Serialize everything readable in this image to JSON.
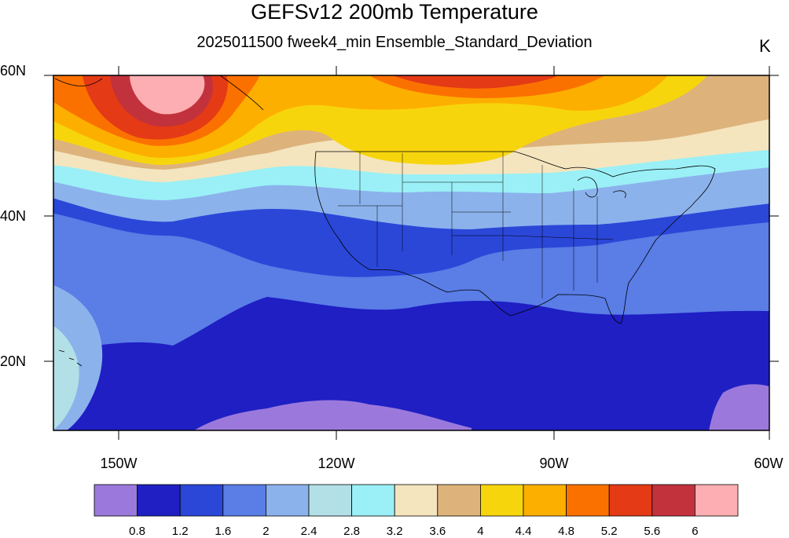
{
  "title": "GEFSv12 200mb Temperature",
  "subtitle": "2025011500 fweek4_min Ensemble_Standard_Deviation",
  "units": "K",
  "latitude_labels": [
    "60N",
    "40N",
    "20N"
  ],
  "longitude_labels": [
    "150W",
    "120W",
    "90W",
    "60W"
  ],
  "colorbar": {
    "labels": [
      "0.8",
      "1.2",
      "1.6",
      "2",
      "2.4",
      "2.8",
      "3.2",
      "3.6",
      "4",
      "4.4",
      "4.8",
      "5.2",
      "5.6",
      "6"
    ],
    "colors": [
      "#9b79dc",
      "#1f1fc4",
      "#2b47d8",
      "#5a7de6",
      "#8cb2ec",
      "#b2e0e6",
      "#9af0f6",
      "#f4e5bf",
      "#ddb37b",
      "#f7d50c",
      "#fdaf00",
      "#fb7100",
      "#e43a16",
      "#c2323c",
      "#fdaeb2"
    ]
  },
  "map_layers": {
    "background": "#2b47d8",
    "regions": [
      {
        "name": "central-pacific-light",
        "color": "#5a7de6"
      },
      {
        "name": "deep-south-band",
        "color": "#1f1fc4"
      },
      {
        "name": "tropics-lowest",
        "color": "#9b79dc"
      },
      {
        "name": "hawaii-region",
        "color": "#8cb2ec"
      },
      {
        "name": "hawaii-core",
        "color": "#b2e0e6"
      },
      {
        "name": "mid-band-light-blue",
        "color": "#8cb2ec"
      },
      {
        "name": "cyan-band",
        "color": "#9af0f6"
      },
      {
        "name": "tan-band",
        "color": "#f4e5bf"
      },
      {
        "name": "dark-tan-band",
        "color": "#ddb37b"
      },
      {
        "name": "yellow-band",
        "color": "#f7d50c"
      },
      {
        "name": "orange-band",
        "color": "#fdaf00"
      },
      {
        "name": "dark-orange-band",
        "color": "#fb7100"
      },
      {
        "name": "alaska-red",
        "color": "#e43a16"
      },
      {
        "name": "alaska-darkred",
        "color": "#c2323c"
      },
      {
        "name": "alaska-pink",
        "color": "#fdaeb2"
      }
    ]
  }
}
